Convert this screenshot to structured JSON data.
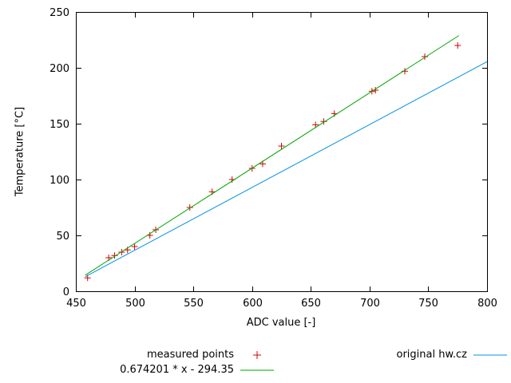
{
  "chart_data": {
    "type": "scatter",
    "title": "",
    "xlabel": "ADC value [-]",
    "ylabel": "Temperature [°C]",
    "xlim": [
      450,
      800
    ],
    "ylim": [
      0,
      250
    ],
    "xticks": [
      450,
      500,
      550,
      600,
      650,
      700,
      750,
      800
    ],
    "yticks": [
      0,
      50,
      100,
      150,
      200,
      250
    ],
    "grid": false,
    "legend_position": "below-plot",
    "series": [
      {
        "name": "measured points",
        "kind": "points",
        "marker": "plus",
        "color": "#d80000",
        "points": [
          [
            460,
            12
          ],
          [
            478,
            30
          ],
          [
            483,
            32
          ],
          [
            489,
            35
          ],
          [
            494,
            37
          ],
          [
            500,
            40
          ],
          [
            513,
            50
          ],
          [
            518,
            55
          ],
          [
            547,
            75
          ],
          [
            566,
            89
          ],
          [
            583,
            100
          ],
          [
            600,
            110
          ],
          [
            609,
            114
          ],
          [
            625,
            130
          ],
          [
            654,
            149
          ],
          [
            661,
            152
          ],
          [
            670,
            159
          ],
          [
            702,
            179
          ],
          [
            705,
            180
          ],
          [
            730,
            197
          ],
          [
            747,
            210
          ],
          [
            775,
            220
          ]
        ]
      },
      {
        "name": "0.674201 * x - 294.35",
        "kind": "line",
        "color": "#00a400",
        "slope": 0.674201,
        "intercept": -294.35,
        "points": [
          [
            458,
            14.43
          ],
          [
            776,
            228.83
          ]
        ]
      },
      {
        "name": "original hw.cz",
        "kind": "line",
        "color": "#0090e8",
        "points": [
          [
            458,
            13
          ],
          [
            800,
            205.5
          ]
        ]
      }
    ]
  }
}
